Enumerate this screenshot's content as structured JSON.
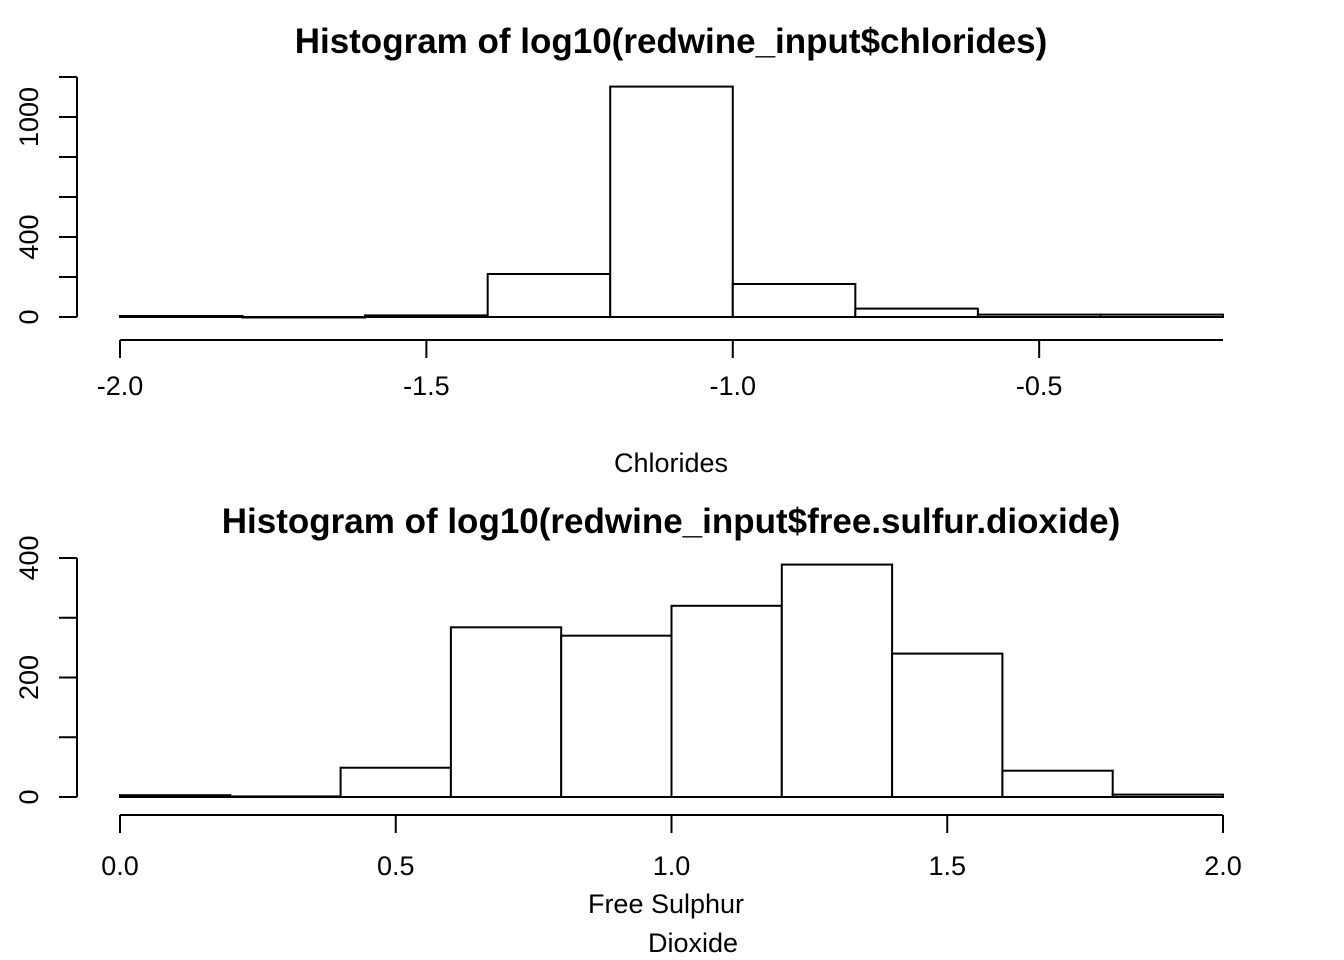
{
  "chart_data": [
    {
      "type": "bar",
      "title": "Histogram of log10(redwine_input$chlorides)",
      "xlabel": "Chlorides",
      "ylabel": "",
      "bins": [
        {
          "x0": -2.0,
          "x1": -1.8,
          "count": 5
        },
        {
          "x0": -1.8,
          "x1": -1.6,
          "count": 0
        },
        {
          "x0": -1.6,
          "x1": -1.4,
          "count": 8
        },
        {
          "x0": -1.4,
          "x1": -1.2,
          "count": 215
        },
        {
          "x0": -1.2,
          "x1": -1.0,
          "count": 1152
        },
        {
          "x0": -1.0,
          "x1": -0.8,
          "count": 165
        },
        {
          "x0": -0.8,
          "x1": -0.6,
          "count": 42
        },
        {
          "x0": -0.6,
          "x1": -0.4,
          "count": 12
        },
        {
          "x0": -0.4,
          "x1": -0.2,
          "count": 12
        }
      ],
      "xticks": [
        -2.0,
        -1.5,
        -1.0,
        -0.5
      ],
      "xtick_labels": [
        "-2.0",
        "-1.5",
        "-1.0",
        "-0.5"
      ],
      "yticks_major": [
        0,
        400,
        1000
      ],
      "ytick_labels": [
        "0",
        "400",
        "1000"
      ],
      "yticks_minor": [
        200,
        600,
        800,
        1200
      ],
      "xlim": [
        -2.0,
        -0.2
      ],
      "ylim": [
        0,
        1200
      ],
      "grid": false
    },
    {
      "type": "bar",
      "title": "Histogram of log10(redwine_input$free.sulfur.dioxide)",
      "xlabel": [
        "Free Sulphur",
        "Dioxide"
      ],
      "ylabel": "",
      "bins": [
        {
          "x0": 0.0,
          "x1": 0.2,
          "count": 3
        },
        {
          "x0": 0.2,
          "x1": 0.4,
          "count": 1
        },
        {
          "x0": 0.4,
          "x1": 0.6,
          "count": 49
        },
        {
          "x0": 0.6,
          "x1": 0.8,
          "count": 284
        },
        {
          "x0": 0.8,
          "x1": 1.0,
          "count": 270
        },
        {
          "x0": 1.0,
          "x1": 1.2,
          "count": 320
        },
        {
          "x0": 1.2,
          "x1": 1.4,
          "count": 389
        },
        {
          "x0": 1.4,
          "x1": 1.6,
          "count": 240
        },
        {
          "x0": 1.6,
          "x1": 1.8,
          "count": 44
        },
        {
          "x0": 1.8,
          "x1": 2.0,
          "count": 4
        }
      ],
      "xticks": [
        0.0,
        0.5,
        1.0,
        1.5,
        2.0
      ],
      "xtick_labels": [
        "0.0",
        "0.5",
        "1.0",
        "1.5",
        "2.0"
      ],
      "yticks_major": [
        0,
        200,
        400
      ],
      "ytick_labels": [
        "0",
        "200",
        "400"
      ],
      "yticks_minor": [
        100,
        300
      ],
      "xlim": [
        0.0,
        2.0
      ],
      "ylim": [
        0,
        400
      ],
      "grid": false
    }
  ]
}
